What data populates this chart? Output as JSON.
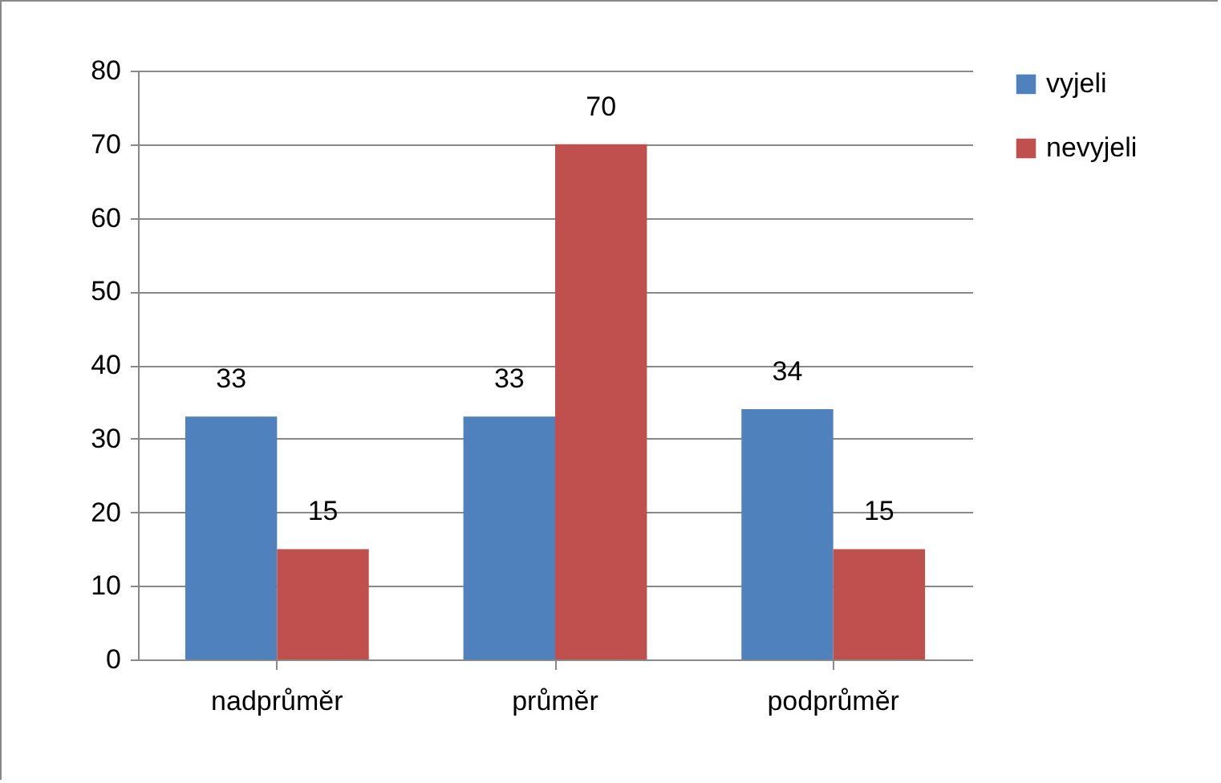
{
  "chart_data": {
    "type": "bar",
    "categories": [
      "nadprůměr",
      "průměr",
      "podprůměr"
    ],
    "series": [
      {
        "name": "vyjeli",
        "color": "#4f81bd",
        "values": [
          33,
          33,
          34
        ]
      },
      {
        "name": "nevyjeli",
        "color": "#c0504d",
        "values": [
          15,
          70,
          15
        ]
      }
    ],
    "ylim": [
      0,
      80
    ],
    "yticks": [
      0,
      10,
      20,
      30,
      40,
      50,
      60,
      70,
      80
    ],
    "grid": "y",
    "legend": "right",
    "data_labels": true
  }
}
